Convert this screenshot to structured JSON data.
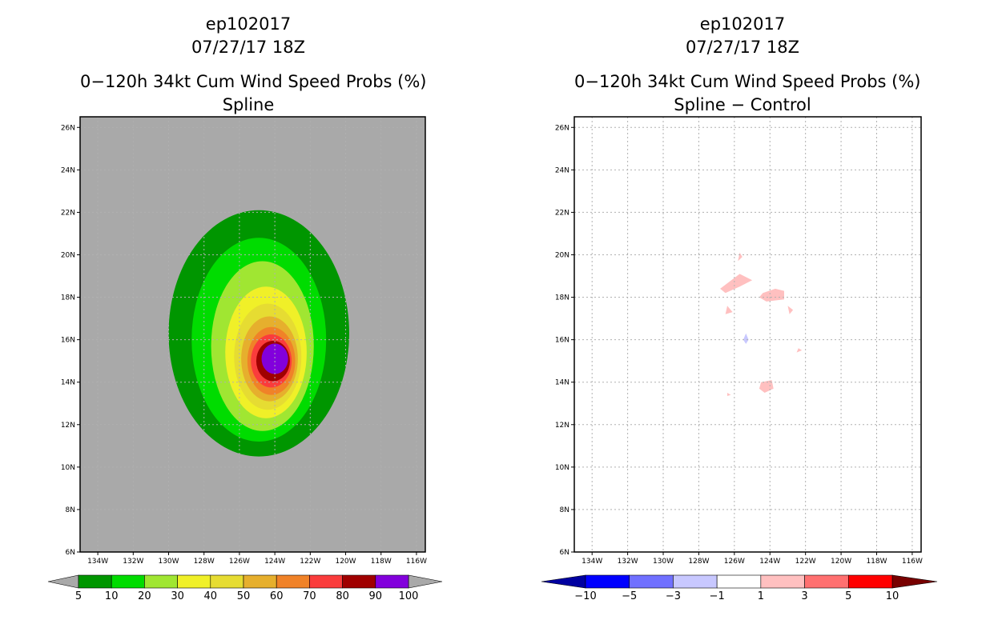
{
  "left": {
    "storm": "ep102017",
    "datetime": "07/27/17 18Z",
    "title": "0−120h 34kt Cum Wind Speed Probs (%)",
    "subtitle": "Spline"
  },
  "right": {
    "storm": "ep102017",
    "datetime": "07/27/17 18Z",
    "title": "0−120h 34kt Cum Wind Speed Probs (%)",
    "subtitle": "Spline − Control"
  },
  "colors": {
    "background_left": "#a9a9a9",
    "prob_levels": [
      "#009600",
      "#00dc00",
      "#a0e632",
      "#f0f028",
      "#e6dc32",
      "#e6af2d",
      "#f08228",
      "#fa3c3c",
      "#a00000",
      "#8200dc"
    ],
    "diff_levels": [
      "#0000a0",
      "#0000ff",
      "#7070ff",
      "#c8c8ff",
      "#ffffff",
      "#ffc0c0",
      "#ff7070",
      "#ff0000",
      "#780000"
    ]
  },
  "chart_data": [
    {
      "type": "heatmap",
      "title": "0−120h 34kt Cum Wind Speed Probs (%) — Spline",
      "x_ticks": [
        "134W",
        "132W",
        "130W",
        "128W",
        "126W",
        "124W",
        "122W",
        "120W",
        "118W",
        "116W"
      ],
      "y_ticks": [
        "6N",
        "8N",
        "10N",
        "12N",
        "14N",
        "16N",
        "18N",
        "20N",
        "22N",
        "24N",
        "26N"
      ],
      "xlim": [
        -135,
        -115.5
      ],
      "ylim": [
        6,
        26.5
      ],
      "colorbar_labels": [
        "5",
        "10",
        "20",
        "30",
        "40",
        "50",
        "60",
        "70",
        "80",
        "90",
        "100"
      ],
      "contours": [
        {
          "level": 5,
          "center": [
            -124.9,
            16.3
          ],
          "rx": 5.1,
          "ry": 5.8
        },
        {
          "level": 10,
          "center": [
            -124.9,
            16.0
          ],
          "rx": 3.8,
          "ry": 4.8
        },
        {
          "level": 20,
          "center": [
            -124.7,
            15.7
          ],
          "rx": 2.9,
          "ry": 4.0
        },
        {
          "level": 30,
          "center": [
            -124.5,
            15.4
          ],
          "rx": 2.3,
          "ry": 3.1
        },
        {
          "level": 40,
          "center": [
            -124.4,
            15.2
          ],
          "rx": 1.9,
          "ry": 2.5
        },
        {
          "level": 50,
          "center": [
            -124.3,
            15.1
          ],
          "rx": 1.6,
          "ry": 2.0
        },
        {
          "level": 60,
          "center": [
            -124.2,
            15.0
          ],
          "rx": 1.35,
          "ry": 1.6
        },
        {
          "level": 70,
          "center": [
            -124.2,
            15.0
          ],
          "rx": 1.15,
          "ry": 1.25
        },
        {
          "level": 80,
          "center": [
            -124.1,
            15.0
          ],
          "rx": 0.95,
          "ry": 0.95
        },
        {
          "level": 90,
          "center": [
            -124.0,
            15.1
          ],
          "rx": 0.75,
          "ry": 0.72
        }
      ]
    },
    {
      "type": "heatmap",
      "title": "0−120h 34kt Cum Wind Speed Probs (%) — Spline − Control",
      "x_ticks": [
        "134W",
        "132W",
        "130W",
        "128W",
        "126W",
        "124W",
        "122W",
        "120W",
        "118W",
        "116W"
      ],
      "y_ticks": [
        "6N",
        "8N",
        "10N",
        "12N",
        "14N",
        "16N",
        "18N",
        "20N",
        "22N",
        "24N",
        "26N"
      ],
      "xlim": [
        -135,
        -115.5
      ],
      "ylim": [
        6,
        26.5
      ],
      "colorbar_labels": [
        "−10",
        "−5",
        "−3",
        "−1",
        "1",
        "3",
        "5",
        "10"
      ],
      "patches": [
        {
          "sign": "positive",
          "points": [
            [
              -126.8,
              18.4
            ],
            [
              -125.7,
              19.1
            ],
            [
              -125.0,
              18.8
            ],
            [
              -125.7,
              18.5
            ],
            [
              -126.5,
              18.2
            ]
          ]
        },
        {
          "sign": "positive",
          "points": [
            [
              -124.4,
              18.2
            ],
            [
              -123.7,
              18.4
            ],
            [
              -123.2,
              18.3
            ],
            [
              -123.2,
              17.9
            ],
            [
              -124.2,
              17.8
            ],
            [
              -124.6,
              18.0
            ]
          ]
        },
        {
          "sign": "positive",
          "points": [
            [
              -125.7,
              20.1
            ],
            [
              -125.55,
              19.9
            ],
            [
              -125.8,
              19.7
            ]
          ]
        },
        {
          "sign": "positive",
          "points": [
            [
              -126.4,
              17.6
            ],
            [
              -126.1,
              17.3
            ],
            [
              -126.5,
              17.2
            ]
          ]
        },
        {
          "sign": "positive",
          "points": [
            [
              -123.0,
              17.6
            ],
            [
              -122.7,
              17.4
            ],
            [
              -122.9,
              17.2
            ]
          ]
        },
        {
          "sign": "positive",
          "points": [
            [
              -122.4,
              15.6
            ],
            [
              -122.2,
              15.5
            ],
            [
              -122.5,
              15.4
            ]
          ]
        },
        {
          "sign": "positive",
          "points": [
            [
              -124.5,
              14.0
            ],
            [
              -123.9,
              14.1
            ],
            [
              -123.8,
              13.7
            ],
            [
              -124.3,
              13.5
            ],
            [
              -124.6,
              13.7
            ]
          ]
        },
        {
          "sign": "positive",
          "points": [
            [
              -126.4,
              13.5
            ],
            [
              -126.2,
              13.4
            ],
            [
              -126.4,
              13.35
            ]
          ]
        },
        {
          "sign": "negative",
          "points": [
            [
              -125.35,
              16.3
            ],
            [
              -125.2,
              16.0
            ],
            [
              -125.35,
              15.8
            ],
            [
              -125.5,
              16.0
            ]
          ]
        }
      ]
    }
  ]
}
